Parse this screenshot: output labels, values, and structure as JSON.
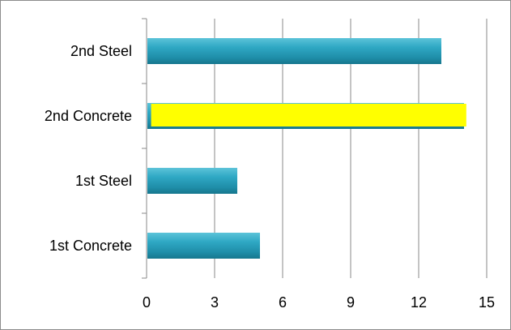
{
  "chart_data": {
    "type": "bar",
    "orientation": "horizontal",
    "categories": [
      "2nd Steel",
      "2nd Concrete",
      "1st Steel",
      "1st Concrete"
    ],
    "values": [
      13,
      14,
      4,
      5
    ],
    "xlim": [
      0,
      15
    ],
    "x_ticks": [
      0,
      3,
      6,
      9,
      12,
      15
    ],
    "grid": "vertical",
    "legend": "none",
    "bar_color": "#2fa4bf",
    "overlay": {
      "category": "2nd Concrete",
      "start": 0.2,
      "end": 14.1,
      "color": "#ffff00"
    }
  }
}
